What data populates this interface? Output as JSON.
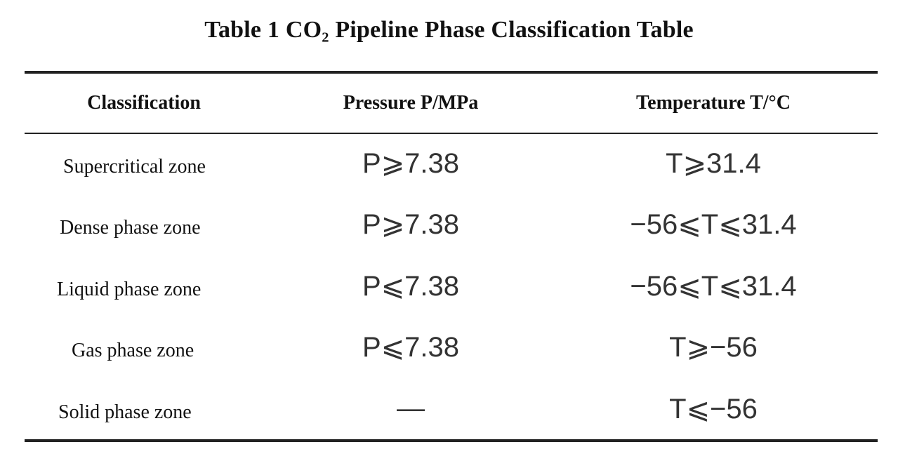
{
  "title": "Table 1 CO₂ Pipeline Phase Classification Table",
  "headers": {
    "classification": "Classification",
    "pressure": "Pressure P/MPa",
    "temperature": "Temperature T/°C"
  },
  "rows": [
    {
      "name": "Supercritical zone",
      "pressure": "P⩾7.38",
      "temperature": "T⩾31.4"
    },
    {
      "name": "Dense phase zone",
      "pressure": "P⩾7.38",
      "temperature": "−56⩽T⩽31.4"
    },
    {
      "name": "Liquid phase zone",
      "pressure": "P⩽7.38",
      "temperature": "−56⩽T⩽31.4"
    },
    {
      "name": "Gas phase zone",
      "pressure": "P⩽7.38",
      "temperature": "T⩾−56"
    },
    {
      "name": "Solid phase zone",
      "pressure": "—",
      "temperature": "T⩽−56"
    }
  ]
}
